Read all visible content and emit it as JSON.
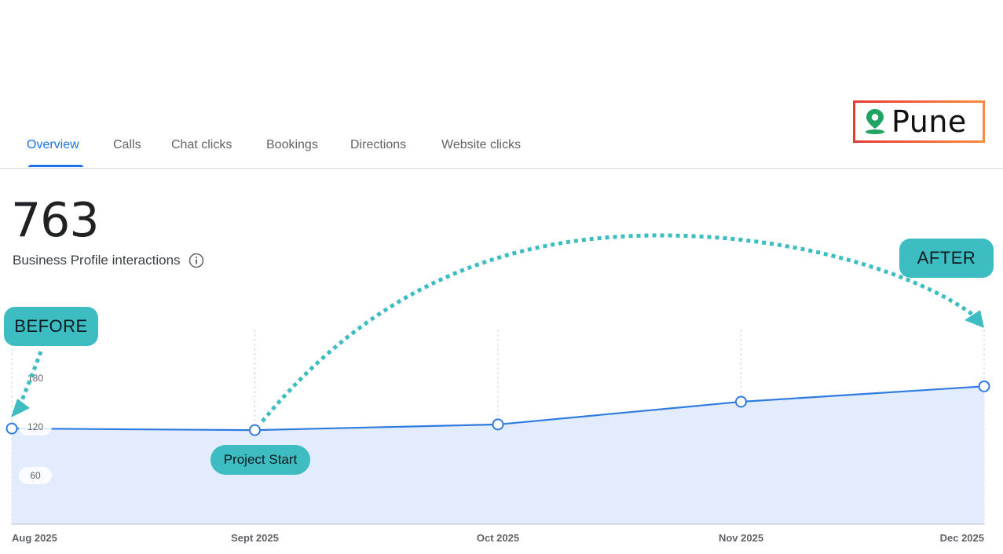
{
  "tabs": [
    {
      "label": "Overview",
      "active": true
    },
    {
      "label": "Calls",
      "active": false
    },
    {
      "label": "Chat clicks",
      "active": false
    },
    {
      "label": "Bookings",
      "active": false
    },
    {
      "label": "Directions",
      "active": false
    },
    {
      "label": "Website clicks",
      "active": false
    }
  ],
  "location": {
    "name": "Pune",
    "icon": "map-pin-icon",
    "pin_color": "#1ea362"
  },
  "metric": {
    "value": "763",
    "label": "Business Profile interactions",
    "info_icon": "info-icon"
  },
  "annotations": {
    "before": "BEFORE",
    "after": "AFTER",
    "project_start": "Project Start"
  },
  "colors": {
    "accent": "#1a73e8",
    "line": "#2f7be0",
    "area": "#e2ecfd",
    "annotation": "#3dbdc2"
  },
  "chart_data": {
    "type": "area",
    "x": [
      "Aug 2025",
      "Sept 2025",
      "Oct 2025",
      "Nov 2025",
      "Dec 2025"
    ],
    "series": [
      {
        "values": [
          118,
          116,
          123,
          151,
          170
        ]
      }
    ],
    "yticks": [
      60,
      120,
      180
    ],
    "ylim": [
      0,
      200
    ],
    "grid": "vertical dashed",
    "legend": "none"
  }
}
